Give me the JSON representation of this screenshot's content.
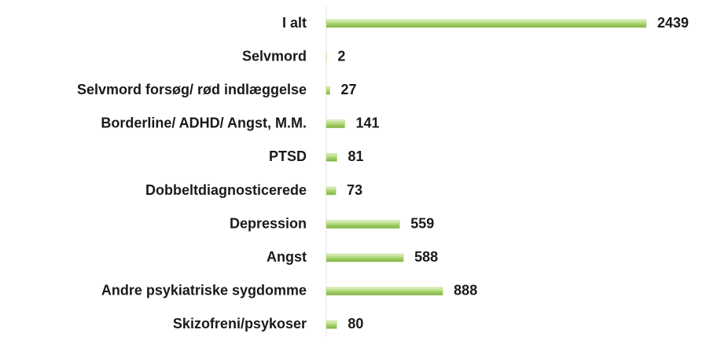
{
  "chart_data": {
    "type": "hbar",
    "categories": [
      "I alt",
      "Selvmord",
      "Selvmord forsøg/ rød indlæggelse",
      "Borderline/ ADHD/ Angst, M.M.",
      "PTSD",
      "Dobbeltdiagnosticerede",
      "Depression",
      "Angst",
      "Andre psykiatriske sygdomme",
      "Skizofreni/psykoser"
    ],
    "values": [
      2439,
      2,
      27,
      141,
      81,
      73,
      559,
      588,
      888,
      80
    ],
    "color": "#a9d46f"
  }
}
